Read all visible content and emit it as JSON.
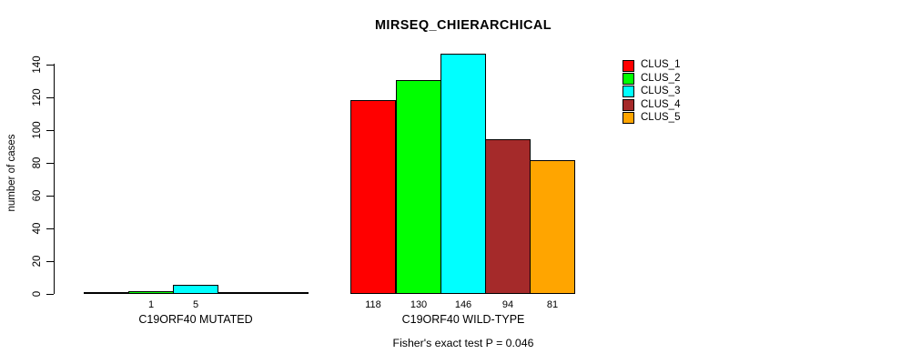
{
  "chart_data": {
    "type": "bar",
    "title": "MIRSEQ_CHIERARCHICAL",
    "ylabel": "number of cases",
    "ylim": [
      0,
      146
    ],
    "y_ticks": [
      0,
      20,
      40,
      60,
      80,
      100,
      120,
      140
    ],
    "grid": false,
    "legend_position": "top-right",
    "clusters": [
      {
        "name": "CLUS_1",
        "color": "#FF0000"
      },
      {
        "name": "CLUS_2",
        "color": "#00FF00"
      },
      {
        "name": "CLUS_3",
        "color": "#00FFFF"
      },
      {
        "name": "CLUS_4",
        "color": "#A52A2A"
      },
      {
        "name": "CLUS_5",
        "color": "#FFA500"
      }
    ],
    "groups": [
      {
        "label": "C19ORF40 MUTATED",
        "values": [
          0,
          1,
          5,
          0,
          0
        ],
        "value_labels": [
          "",
          "1",
          "5",
          "",
          ""
        ]
      },
      {
        "label": "C19ORF40 WILD-TYPE",
        "values": [
          118,
          130,
          146,
          94,
          81
        ],
        "value_labels": [
          "118",
          "130",
          "146",
          "94",
          "81"
        ]
      }
    ],
    "annotation": "Fisher's exact test P = 0.046"
  }
}
